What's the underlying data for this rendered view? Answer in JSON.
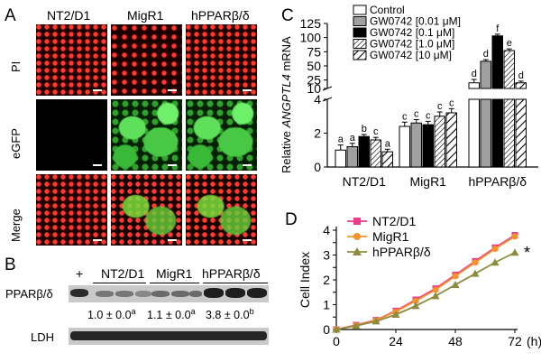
{
  "panels": {
    "A": "A",
    "B": "B",
    "C": "C",
    "D": "D"
  },
  "panelA": {
    "columns": [
      "NT2/D1",
      "MigR1",
      "hPPARβ/δ"
    ],
    "rows": [
      "PI",
      "eGFP",
      "Merge"
    ]
  },
  "panelB": {
    "plus": "+",
    "groups": [
      "NT2/D1",
      "MigR1",
      "hPPARβ/δ"
    ],
    "row_labels": [
      "PPARβ/δ",
      "LDH"
    ],
    "ratios": [
      {
        "value": "1.0 ± 0.0",
        "sup": "a"
      },
      {
        "value": "1.1 ± 0.0",
        "sup": "a"
      },
      {
        "value": "3.8 ± 0.0",
        "sup": "b"
      }
    ]
  },
  "chart_data": [
    {
      "panel": "C",
      "type": "bar",
      "ylabel_pre": "Relative ",
      "ylabel_italic": "ANGPTL4",
      "ylabel_post": " mRNA",
      "categories": [
        "NT2/D1",
        "MigR1",
        "hPPARβ/δ"
      ],
      "legend": [
        "Control",
        "GW0742 [0.01 μM]",
        "GW0742 [0.1 μM]",
        "GW0742 [1.0 μM]",
        "GW0742 [10 μM]"
      ],
      "legend_position": "top-right",
      "yaxis_lower": {
        "range": [
          0,
          4
        ],
        "ticks": [
          0,
          2,
          4
        ]
      },
      "yaxis_upper": {
        "range": [
          10,
          125
        ],
        "ticks": [
          10,
          25,
          50,
          75,
          100,
          125
        ]
      },
      "fills": [
        "#ffffff",
        "#a0a0a0",
        "#000000",
        "hatch",
        "hatch"
      ],
      "series": [
        {
          "name": "Control",
          "values": [
            1.0,
            2.4,
            20.0
          ],
          "letters": [
            "a",
            "c",
            "d"
          ]
        },
        {
          "name": "GW0742 [0.01 μM]",
          "values": [
            1.2,
            2.6,
            58.0
          ],
          "letters": [
            "a",
            "c",
            "d"
          ]
        },
        {
          "name": "GW0742 [0.1 μM]",
          "values": [
            1.8,
            2.5,
            103.0
          ],
          "letters": [
            "b",
            "c",
            "f"
          ]
        },
        {
          "name": "GW0742 [1.0 μM]",
          "values": [
            1.6,
            3.0,
            77.0
          ],
          "letters": [
            "c",
            "c",
            "e"
          ]
        },
        {
          "name": "GW0742 [10 μM]",
          "values": [
            0.9,
            3.2,
            20.0
          ],
          "letters": [
            "a",
            "c",
            "d"
          ]
        }
      ],
      "errors": [
        [
          0.3,
          0.25,
          6.0
        ],
        [
          0.2,
          0.2,
          3.0
        ],
        [
          0.12,
          0.2,
          3.0
        ],
        [
          0.15,
          0.25,
          3.0
        ],
        [
          0.15,
          0.25,
          3.0
        ]
      ]
    },
    {
      "panel": "D",
      "type": "line",
      "ylabel": "Cell Index",
      "xlabel": "(h)",
      "x": [
        0,
        8,
        16,
        24,
        32,
        40,
        48,
        56,
        64,
        72
      ],
      "xticks": [
        0,
        24,
        48,
        72
      ],
      "yticks": [
        0,
        0.5,
        1,
        1.5,
        2,
        2.5,
        3,
        3.5,
        4
      ],
      "xlim": [
        0,
        76
      ],
      "ylim": [
        0,
        4
      ],
      "legend_position": "top-left",
      "annotation": "*",
      "series": [
        {
          "name": "NT2/D1",
          "color": "#ee3a8c",
          "marker": "square",
          "values": [
            0,
            0.18,
            0.38,
            0.75,
            1.2,
            1.65,
            2.2,
            2.75,
            3.3,
            3.8
          ]
        },
        {
          "name": "MigR1",
          "color": "#f5922a",
          "marker": "circle",
          "values": [
            0,
            0.17,
            0.37,
            0.72,
            1.15,
            1.6,
            2.15,
            2.7,
            3.25,
            3.75
          ]
        },
        {
          "name": "hPPARβ/δ",
          "color": "#8c8c3c",
          "marker": "triangle",
          "values": [
            0,
            0.15,
            0.33,
            0.6,
            0.95,
            1.35,
            1.8,
            2.25,
            2.7,
            3.1
          ]
        }
      ]
    }
  ]
}
